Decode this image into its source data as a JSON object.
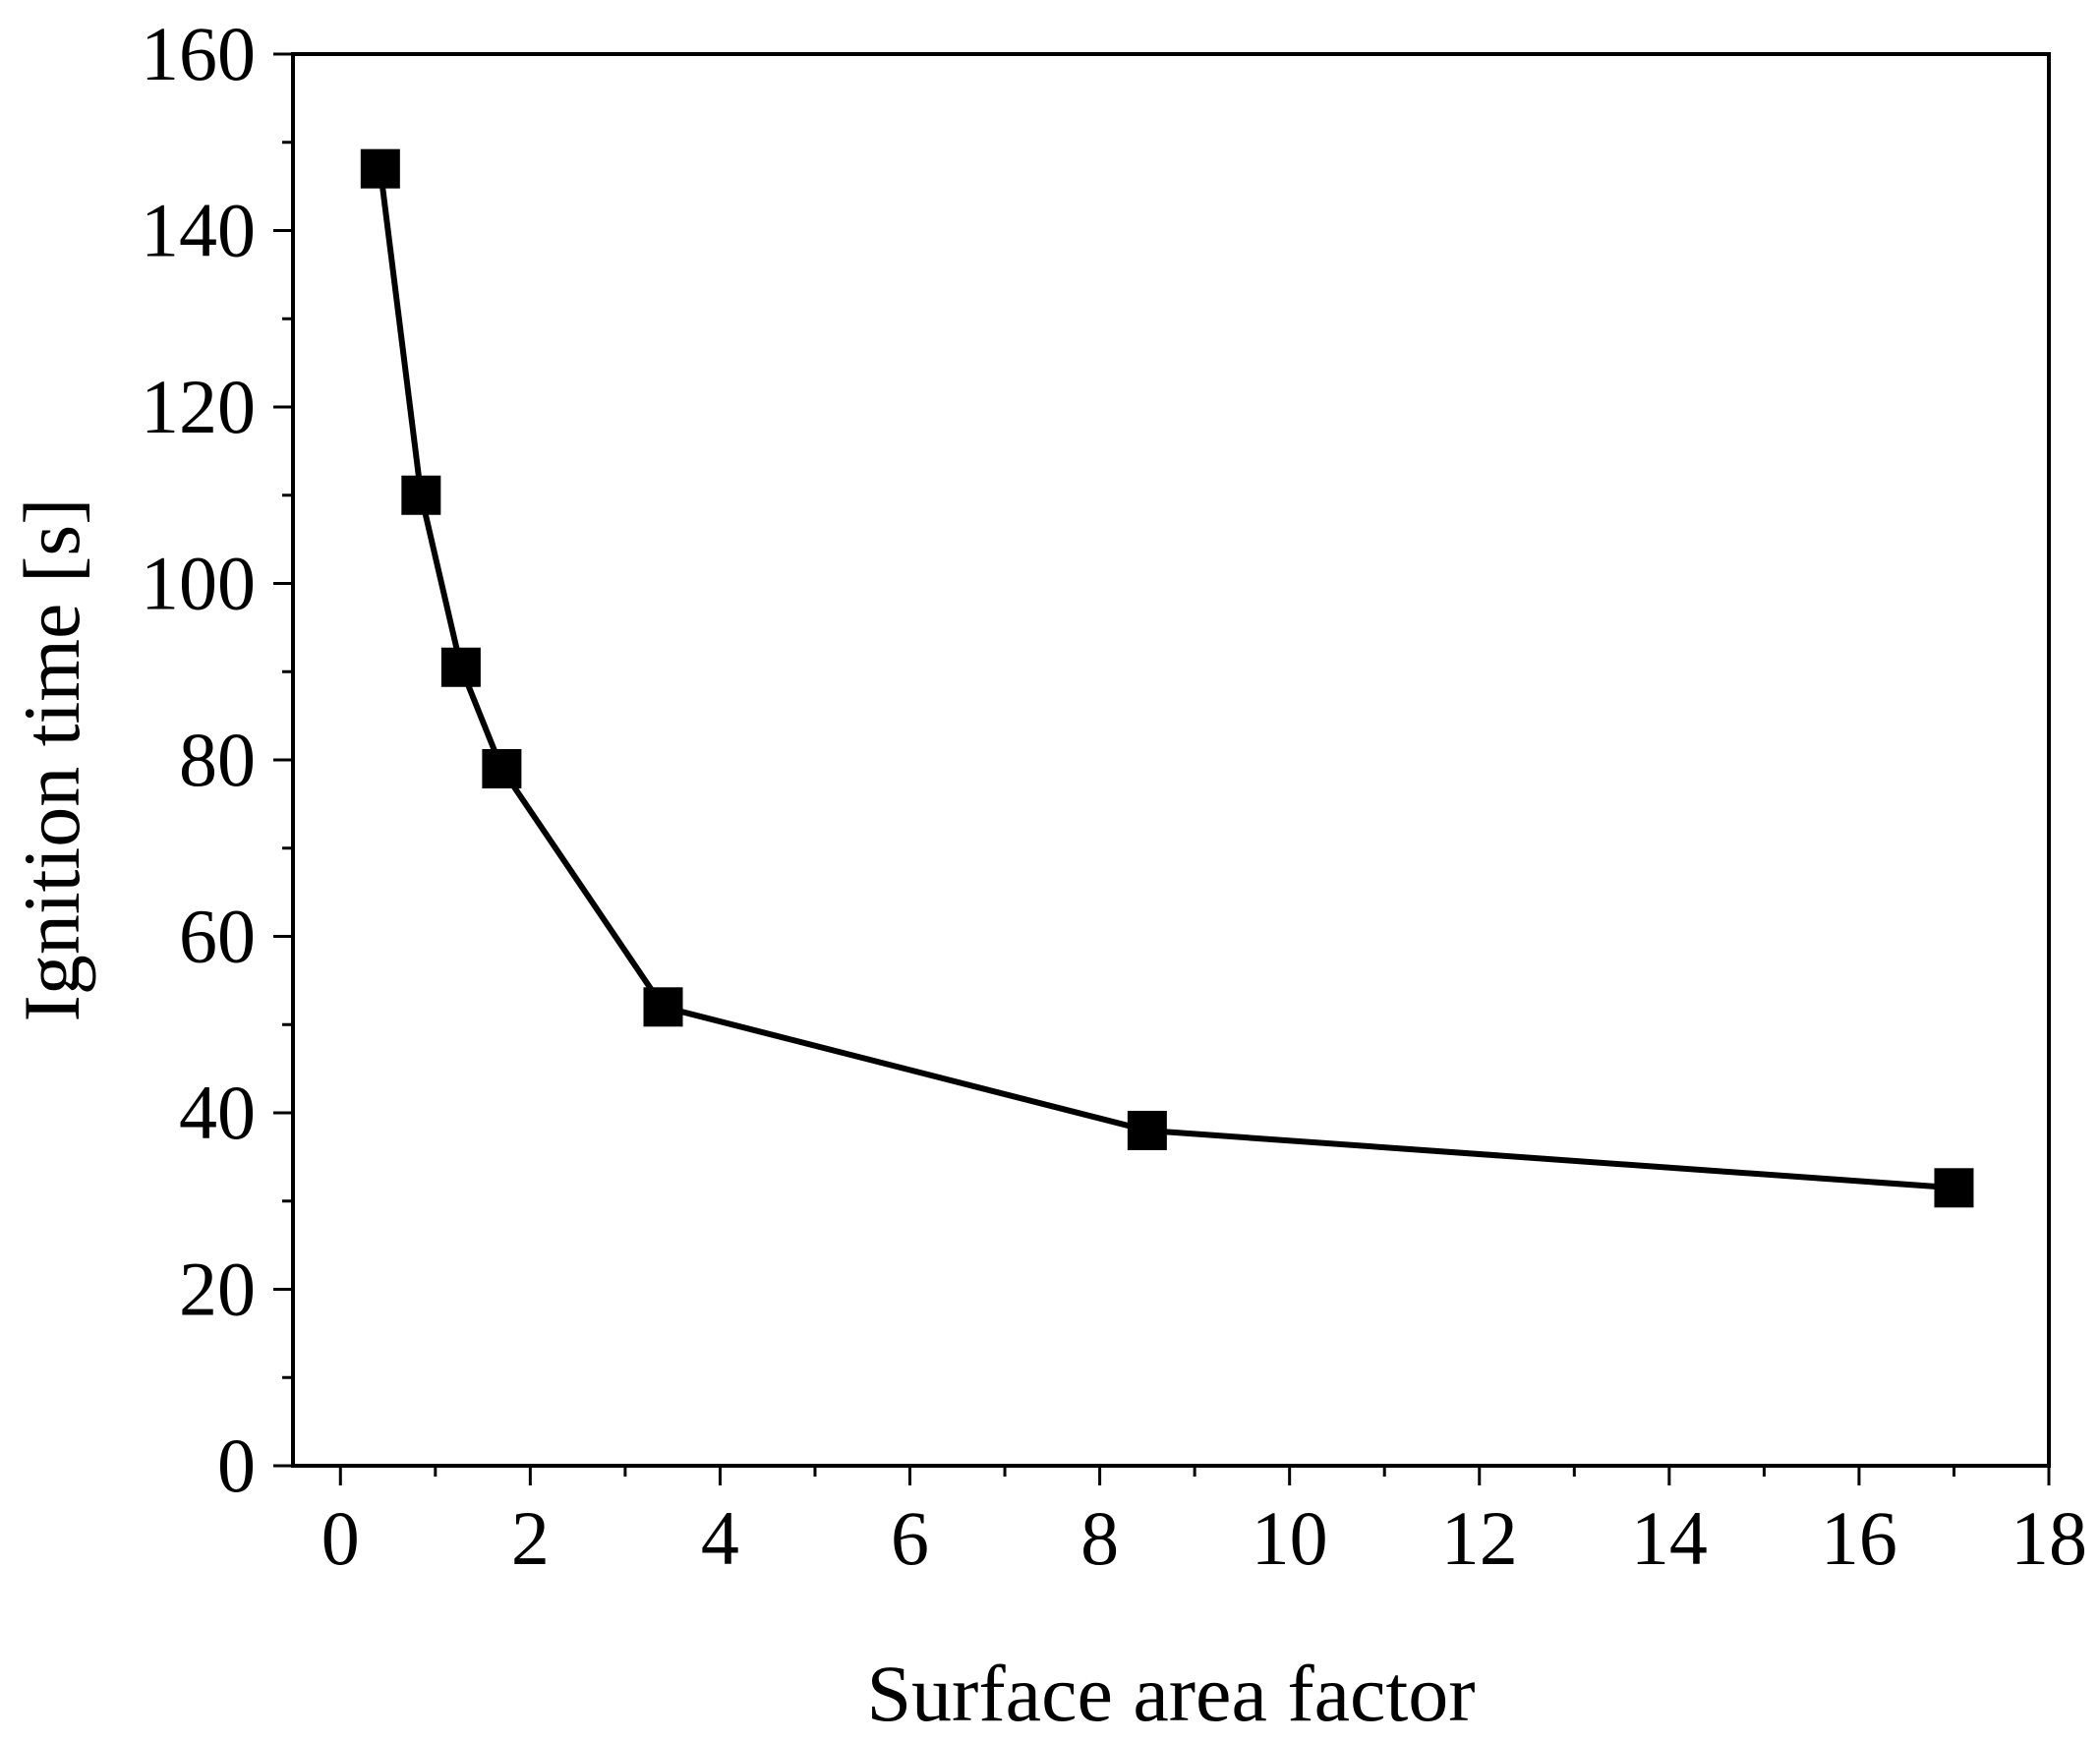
{
  "chart_data": {
    "type": "line",
    "title": "",
    "xlabel": "Surface area factor",
    "ylabel": "Ignition time [s]",
    "xlim": [
      -0.5,
      18
    ],
    "ylim": [
      0,
      160
    ],
    "xticks": [
      0,
      2,
      4,
      6,
      8,
      10,
      12,
      14,
      16,
      18
    ],
    "yticks": [
      0,
      20,
      40,
      60,
      80,
      100,
      120,
      140,
      160
    ],
    "xtick_labels": [
      "0",
      "2",
      "4",
      "6",
      "8",
      "10",
      "12",
      "14",
      "16",
      "18"
    ],
    "ytick_labels": [
      "0",
      "20",
      "40",
      "60",
      "80",
      "100",
      "120",
      "140",
      "160"
    ],
    "grid": false,
    "legend": "none",
    "marker": "square",
    "colors": {
      "line": "#000000",
      "marker": "#000000",
      "axis": "#000000"
    },
    "series": [
      {
        "x": [
          0.42,
          0.85,
          1.27,
          1.7,
          3.4,
          8.5,
          17.0
        ],
        "y": [
          147,
          110,
          90.5,
          79,
          52,
          38,
          31.5
        ]
      }
    ]
  }
}
